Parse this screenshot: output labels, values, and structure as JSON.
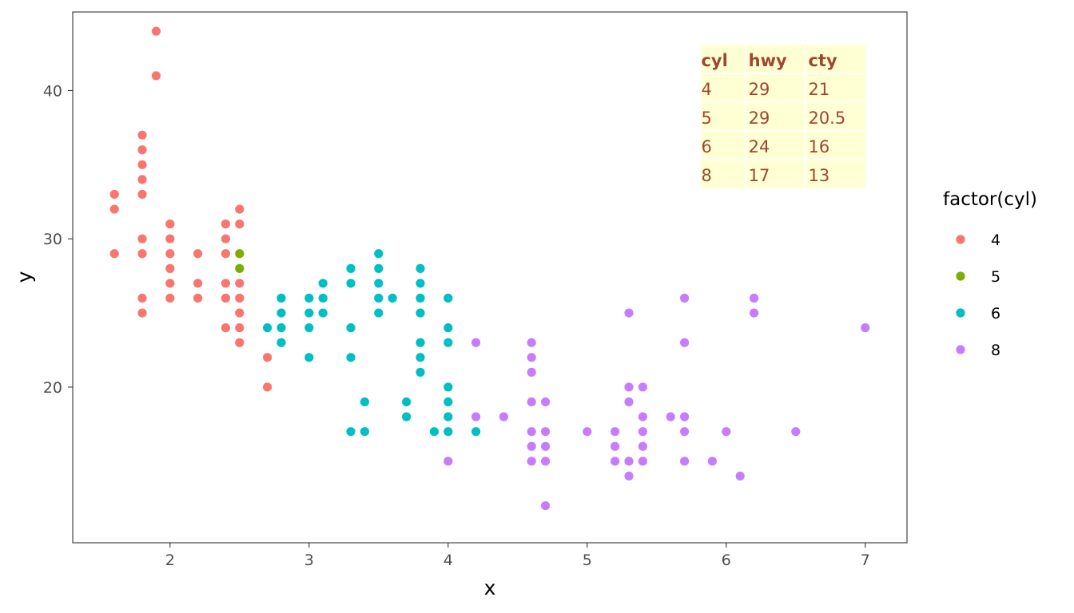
{
  "chart_data": {
    "type": "scatter",
    "xlabel": "x",
    "ylabel": "y",
    "xlim": [
      1.3,
      7.3
    ],
    "ylim": [
      9.5,
      45.3
    ],
    "x_ticks": [
      2,
      3,
      4,
      5,
      6,
      7
    ],
    "y_ticks": [
      20,
      30,
      40
    ],
    "grid": false,
    "legend": {
      "title": "factor(cyl)",
      "position": "right",
      "entries": [
        {
          "label": "4",
          "color": "#F8766D"
        },
        {
          "label": "5",
          "color": "#7CAE00"
        },
        {
          "label": "6",
          "color": "#00BFC4"
        },
        {
          "label": "8",
          "color": "#C77CFF"
        }
      ]
    },
    "series": [
      {
        "name": "4",
        "color": "#F8766D",
        "points": [
          [
            1.6,
            33
          ],
          [
            1.6,
            32
          ],
          [
            1.6,
            29
          ],
          [
            1.8,
            37
          ],
          [
            1.8,
            36
          ],
          [
            1.8,
            35
          ],
          [
            1.8,
            34
          ],
          [
            1.8,
            33
          ],
          [
            1.8,
            30
          ],
          [
            1.8,
            29
          ],
          [
            1.8,
            26
          ],
          [
            1.8,
            25
          ],
          [
            1.9,
            44
          ],
          [
            1.9,
            41
          ],
          [
            2.0,
            31
          ],
          [
            2.0,
            30
          ],
          [
            2.0,
            29
          ],
          [
            2.0,
            28
          ],
          [
            2.0,
            27
          ],
          [
            2.0,
            26
          ],
          [
            2.2,
            29
          ],
          [
            2.2,
            27
          ],
          [
            2.2,
            26
          ],
          [
            2.4,
            31
          ],
          [
            2.4,
            30
          ],
          [
            2.4,
            29
          ],
          [
            2.4,
            27
          ],
          [
            2.4,
            26
          ],
          [
            2.4,
            24
          ],
          [
            2.5,
            32
          ],
          [
            2.5,
            31
          ],
          [
            2.5,
            27
          ],
          [
            2.5,
            26
          ],
          [
            2.5,
            25
          ],
          [
            2.5,
            24
          ],
          [
            2.5,
            23
          ],
          [
            2.7,
            22
          ],
          [
            2.7,
            20
          ]
        ]
      },
      {
        "name": "5",
        "color": "#7CAE00",
        "points": [
          [
            2.5,
            29
          ],
          [
            2.5,
            28
          ]
        ]
      },
      {
        "name": "6",
        "color": "#00BFC4",
        "points": [
          [
            2.7,
            24
          ],
          [
            2.8,
            26
          ],
          [
            2.8,
            25
          ],
          [
            2.8,
            24
          ],
          [
            2.8,
            23
          ],
          [
            3.0,
            26
          ],
          [
            3.0,
            25
          ],
          [
            3.0,
            24
          ],
          [
            3.0,
            22
          ],
          [
            3.1,
            27
          ],
          [
            3.1,
            26
          ],
          [
            3.1,
            25
          ],
          [
            3.3,
            28
          ],
          [
            3.3,
            27
          ],
          [
            3.3,
            24
          ],
          [
            3.3,
            22
          ],
          [
            3.3,
            17
          ],
          [
            3.4,
            19
          ],
          [
            3.4,
            17
          ],
          [
            3.5,
            29
          ],
          [
            3.5,
            28
          ],
          [
            3.5,
            27
          ],
          [
            3.5,
            26
          ],
          [
            3.5,
            25
          ],
          [
            3.6,
            26
          ],
          [
            3.7,
            19
          ],
          [
            3.7,
            18
          ],
          [
            3.8,
            28
          ],
          [
            3.8,
            27
          ],
          [
            3.8,
            26
          ],
          [
            3.8,
            25
          ],
          [
            3.8,
            23
          ],
          [
            3.8,
            22
          ],
          [
            3.8,
            21
          ],
          [
            3.9,
            17
          ],
          [
            4.0,
            26
          ],
          [
            4.0,
            24
          ],
          [
            4.0,
            23
          ],
          [
            4.0,
            20
          ],
          [
            4.0,
            19
          ],
          [
            4.0,
            18
          ],
          [
            4.0,
            17
          ],
          [
            4.2,
            17
          ]
        ]
      },
      {
        "name": "8",
        "color": "#C77CFF",
        "points": [
          [
            4.0,
            15
          ],
          [
            4.2,
            23
          ],
          [
            4.2,
            18
          ],
          [
            4.4,
            18
          ],
          [
            4.6,
            23
          ],
          [
            4.6,
            22
          ],
          [
            4.6,
            21
          ],
          [
            4.6,
            19
          ],
          [
            4.6,
            17
          ],
          [
            4.6,
            16
          ],
          [
            4.6,
            15
          ],
          [
            4.7,
            19
          ],
          [
            4.7,
            17
          ],
          [
            4.7,
            16
          ],
          [
            4.7,
            15
          ],
          [
            4.7,
            12
          ],
          [
            5.0,
            17
          ],
          [
            5.2,
            17
          ],
          [
            5.2,
            16
          ],
          [
            5.2,
            15
          ],
          [
            5.3,
            25
          ],
          [
            5.3,
            20
          ],
          [
            5.3,
            19
          ],
          [
            5.3,
            15
          ],
          [
            5.3,
            14
          ],
          [
            5.4,
            20
          ],
          [
            5.4,
            18
          ],
          [
            5.4,
            17
          ],
          [
            5.4,
            16
          ],
          [
            5.4,
            15
          ],
          [
            5.6,
            18
          ],
          [
            5.7,
            26
          ],
          [
            5.7,
            23
          ],
          [
            5.7,
            18
          ],
          [
            5.7,
            17
          ],
          [
            5.7,
            15
          ],
          [
            5.9,
            15
          ],
          [
            6.0,
            17
          ],
          [
            6.1,
            14
          ],
          [
            6.2,
            26
          ],
          [
            6.2,
            25
          ],
          [
            6.5,
            17
          ],
          [
            7.0,
            24
          ]
        ]
      }
    ],
    "table": {
      "columns": [
        "cyl",
        "hwy",
        "cty"
      ],
      "rows": [
        [
          "4",
          "29",
          "21"
        ],
        [
          "5",
          "29",
          "20.5"
        ],
        [
          "6",
          "24",
          "16"
        ],
        [
          "8",
          "17",
          "13"
        ]
      ],
      "background": "#FFFFD4",
      "text_color": "#A0462F"
    }
  }
}
